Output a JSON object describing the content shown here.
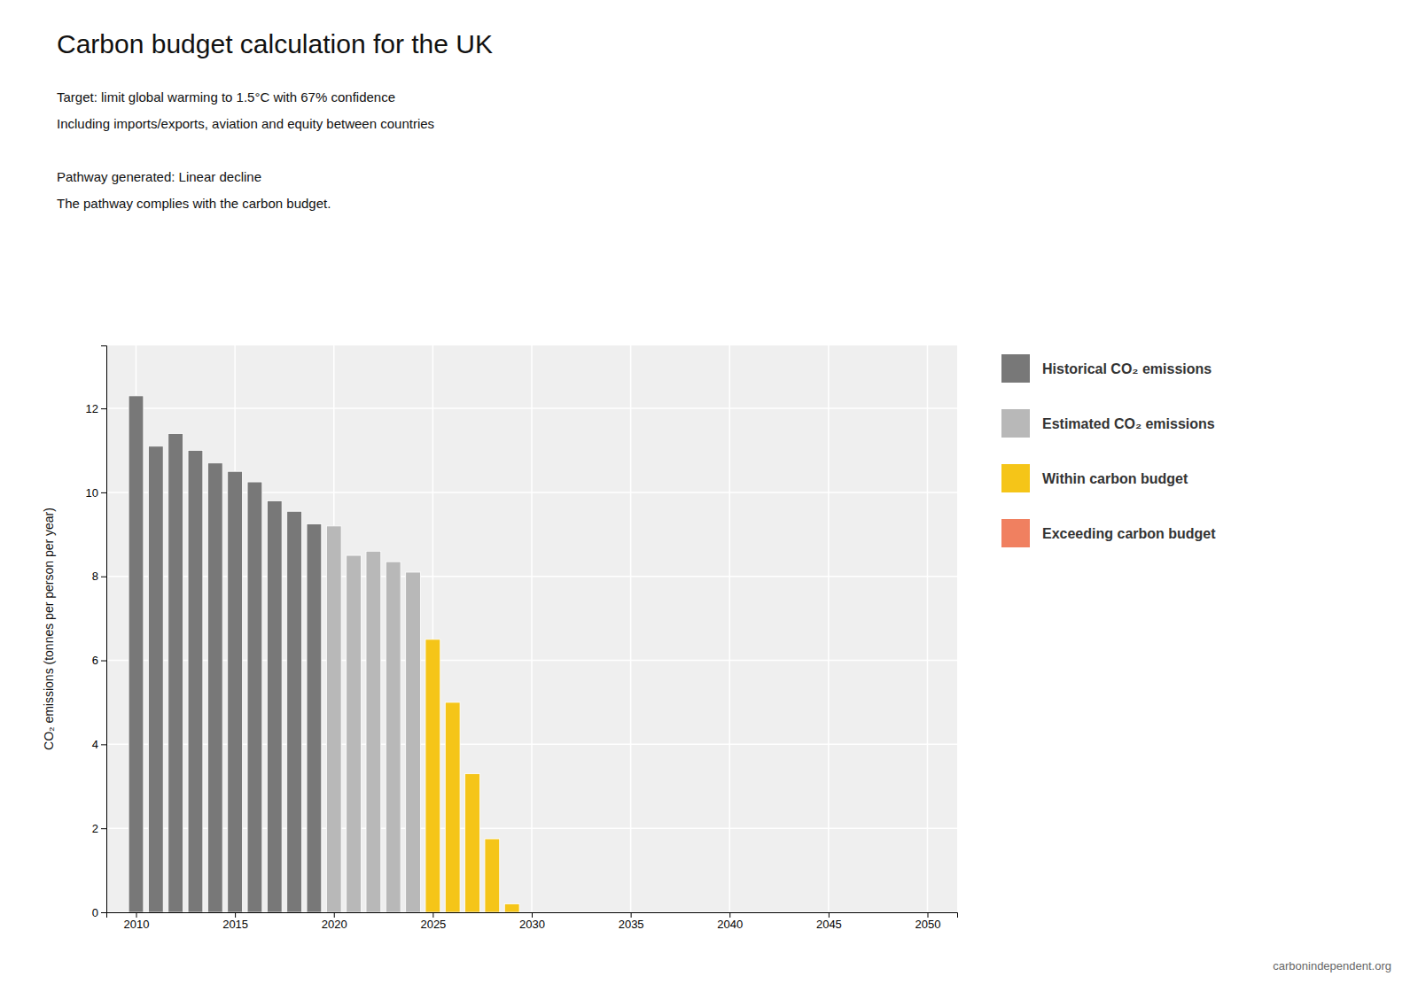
{
  "chart_data": {
    "type": "bar",
    "title": "Carbon budget calculation for the UK",
    "subtitle": [
      "Target: limit global warming to 1.5°C with 67% confidence",
      "Including imports/exports, aviation and equity between countries"
    ],
    "annotations": [
      "Pathway generated: Linear decline",
      "The pathway complies with the carbon budget.",
      "carbonindependent.org"
    ],
    "y_label": "CO₂ emissions (tonnes per person per year)",
    "series": [
      {
        "name": "Historical CO₂ emissions",
        "color": "#787878",
        "x": [
          2010,
          2011,
          2012,
          2013,
          2014,
          2015,
          2016,
          2017,
          2018,
          2019
        ],
        "values": [
          12.3,
          11.1,
          11.4,
          11.0,
          10.7,
          10.5,
          10.25,
          9.8,
          9.55,
          9.25
        ]
      },
      {
        "name": "Estimated CO₂ emissions",
        "color": "#b8b8b8",
        "x": [
          2020,
          2021,
          2022,
          2023,
          2024
        ],
        "values": [
          9.2,
          8.5,
          8.6,
          8.35,
          8.1
        ]
      },
      {
        "name": "Within carbon budget",
        "color": "#f5c518",
        "x": [
          2025,
          2026,
          2027,
          2028,
          2029
        ],
        "values": [
          6.5,
          5.0,
          3.3,
          1.75,
          0.2
        ]
      },
      {
        "name": "Exceeding carbon budget",
        "color": "#f08060",
        "x": [],
        "values": []
      }
    ],
    "xlim": [
      2008.5,
      2051.5
    ],
    "xticks": [
      2010,
      2015,
      2020,
      2025,
      2030,
      2035,
      2040,
      2045,
      2050
    ],
    "ylim": [
      0,
      13.5
    ],
    "yticks": [
      0,
      2,
      4,
      6,
      8,
      10,
      12
    ],
    "grid": true,
    "legend": "right"
  }
}
